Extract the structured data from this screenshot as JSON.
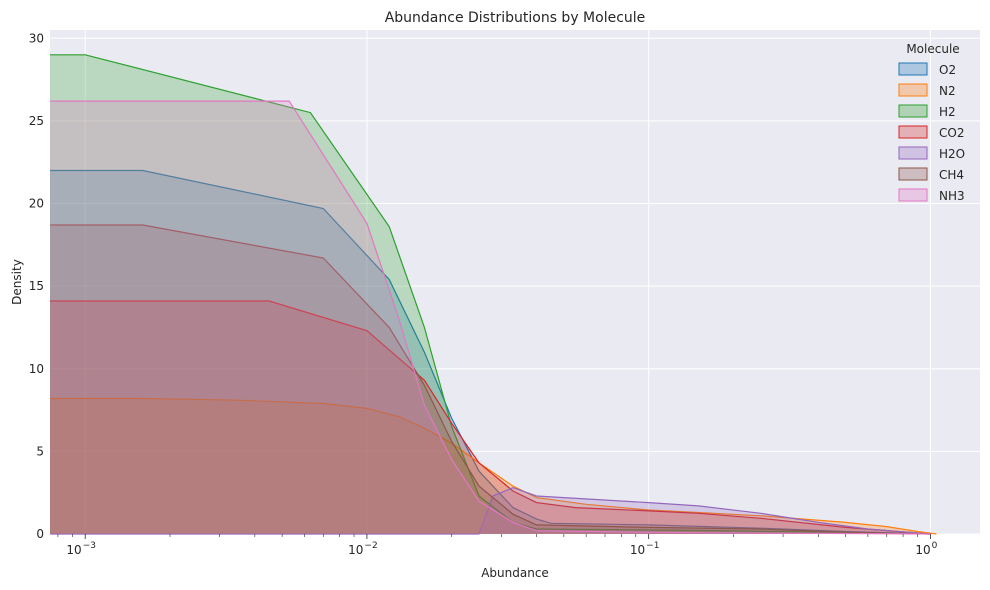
{
  "chart_data": {
    "type": "area",
    "title": "Abundance Distributions by Molecule",
    "xlabel": "Abundance",
    "ylabel": "Density",
    "xscale": "log",
    "xlim": [
      0.00075,
      1.5
    ],
    "ylim": [
      0,
      30.5
    ],
    "x_ticks": [
      {
        "value": 0.001,
        "base": "10",
        "exp": "−3"
      },
      {
        "value": 0.01,
        "base": "10",
        "exp": "−2"
      },
      {
        "value": 0.1,
        "base": "10",
        "exp": "−1"
      },
      {
        "value": 1,
        "base": "10",
        "exp": "0"
      }
    ],
    "y_ticks": [
      "0",
      "5",
      "10",
      "15",
      "20",
      "25",
      "30"
    ],
    "grid": true,
    "legend": {
      "title": "Molecule",
      "placement": "top-right"
    },
    "series": [
      {
        "name": "O2",
        "color": "#1f77b4",
        "points": [
          [
            0.00075,
            22.0
          ],
          [
            0.0016,
            22.0
          ],
          [
            0.007,
            19.7
          ],
          [
            0.012,
            15.4
          ],
          [
            0.016,
            11.0
          ],
          [
            0.02,
            7.0
          ],
          [
            0.025,
            3.8
          ],
          [
            0.033,
            1.6
          ],
          [
            0.04,
            0.9
          ],
          [
            0.045,
            0.65
          ],
          [
            0.1,
            0.55
          ],
          [
            0.25,
            0.35
          ],
          [
            0.5,
            0.15
          ],
          [
            1.0,
            0.0
          ]
        ]
      },
      {
        "name": "N2",
        "color": "#ff7f0e",
        "points": [
          [
            0.00075,
            8.2
          ],
          [
            0.0016,
            8.2
          ],
          [
            0.0035,
            8.1
          ],
          [
            0.007,
            7.9
          ],
          [
            0.01,
            7.6
          ],
          [
            0.013,
            7.1
          ],
          [
            0.016,
            6.4
          ],
          [
            0.02,
            5.5
          ],
          [
            0.025,
            4.3
          ],
          [
            0.033,
            2.9
          ],
          [
            0.04,
            2.2
          ],
          [
            0.06,
            1.8
          ],
          [
            0.1,
            1.45
          ],
          [
            0.15,
            1.3
          ],
          [
            0.25,
            1.1
          ],
          [
            0.5,
            0.7
          ],
          [
            0.7,
            0.45
          ],
          [
            0.9,
            0.15
          ],
          [
            1.05,
            0.0
          ]
        ]
      },
      {
        "name": "H2",
        "color": "#2ca02c",
        "points": [
          [
            0.00075,
            29.0
          ],
          [
            0.001,
            29.0
          ],
          [
            0.0063,
            25.5
          ],
          [
            0.012,
            18.6
          ],
          [
            0.016,
            12.5
          ],
          [
            0.02,
            6.5
          ],
          [
            0.025,
            2.3
          ],
          [
            0.033,
            0.7
          ],
          [
            0.04,
            0.3
          ],
          [
            0.1,
            0.25
          ],
          [
            0.3,
            0.15
          ],
          [
            0.5,
            0.1
          ],
          [
            1.0,
            0.0
          ]
        ]
      },
      {
        "name": "CO2",
        "color": "#d62728",
        "points": [
          [
            0.00075,
            14.1
          ],
          [
            0.0045,
            14.1
          ],
          [
            0.01,
            12.3
          ],
          [
            0.016,
            9.3
          ],
          [
            0.02,
            6.7
          ],
          [
            0.025,
            4.3
          ],
          [
            0.033,
            2.6
          ],
          [
            0.04,
            1.9
          ],
          [
            0.055,
            1.6
          ],
          [
            0.1,
            1.4
          ],
          [
            0.15,
            1.25
          ],
          [
            0.25,
            0.95
          ],
          [
            0.5,
            0.4
          ],
          [
            1.0,
            0.0
          ]
        ]
      },
      {
        "name": "H2O",
        "color": "#9467bd",
        "points": [
          [
            0.00075,
            0.0
          ],
          [
            0.025,
            0.0
          ],
          [
            0.028,
            2.3
          ],
          [
            0.033,
            2.8
          ],
          [
            0.04,
            2.3
          ],
          [
            0.05,
            2.2
          ],
          [
            0.1,
            1.9
          ],
          [
            0.15,
            1.7
          ],
          [
            0.25,
            1.25
          ],
          [
            0.4,
            0.7
          ],
          [
            0.6,
            0.3
          ],
          [
            1.0,
            0.0
          ]
        ]
      },
      {
        "name": "CH4",
        "color": "#8c564b",
        "points": [
          [
            0.00075,
            18.7
          ],
          [
            0.0016,
            18.7
          ],
          [
            0.007,
            16.7
          ],
          [
            0.012,
            12.5
          ],
          [
            0.016,
            9.0
          ],
          [
            0.02,
            5.6
          ],
          [
            0.025,
            2.9
          ],
          [
            0.033,
            1.2
          ],
          [
            0.04,
            0.55
          ],
          [
            0.1,
            0.4
          ],
          [
            0.25,
            0.3
          ],
          [
            0.5,
            0.1
          ],
          [
            1.0,
            0.0
          ]
        ]
      },
      {
        "name": "NH3",
        "color": "#e377c2",
        "points": [
          [
            0.00075,
            26.2
          ],
          [
            0.0053,
            26.2
          ],
          [
            0.01,
            18.8
          ],
          [
            0.013,
            13.0
          ],
          [
            0.016,
            7.8
          ],
          [
            0.02,
            4.5
          ],
          [
            0.025,
            2.0
          ],
          [
            0.033,
            0.7
          ],
          [
            0.04,
            0.2
          ],
          [
            0.1,
            0.1
          ],
          [
            0.3,
            0.05
          ],
          [
            1.0,
            0.0
          ]
        ]
      }
    ]
  }
}
